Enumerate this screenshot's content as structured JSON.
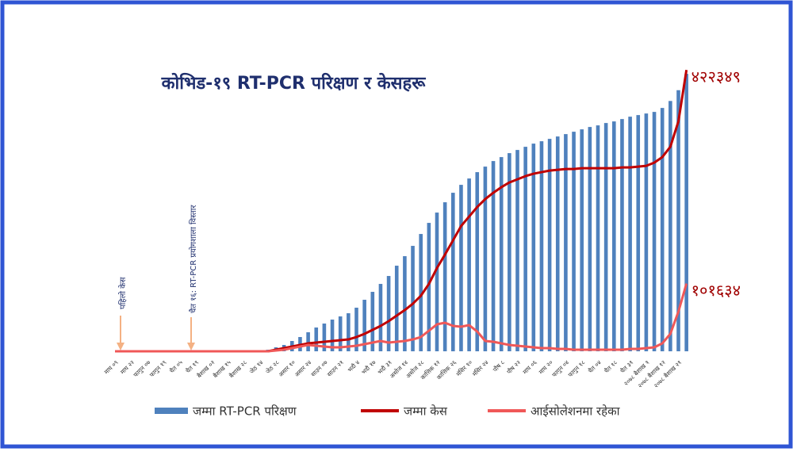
{
  "chart_data": {
    "type": "bar",
    "title": "कोभिड-१९ RT-PCR परिक्षण र केसहरू",
    "annotations": [
      "पहिलो केस",
      "चैत १६: RT-PCR प्रयोगशाला विस्तार"
    ],
    "categories": [
      "माघ ०९",
      null,
      "माघ २२",
      null,
      "फागुन ०७",
      null,
      "फागुन १९",
      null,
      "चैत ०५",
      null,
      "चैत १९",
      null,
      "बैशाख ०२",
      null,
      "बैशाख १५",
      null,
      "बैशाख २८",
      null,
      "जेठ १४",
      null,
      "जेठ २८",
      null,
      "असार १०",
      null,
      "असार २४",
      null,
      "साउन ०७",
      null,
      "साउन २१",
      null,
      "भदौ ४",
      null,
      "भदौ १७",
      null,
      "भदौ ३१",
      null,
      "असोज १४",
      null,
      "असोज २८",
      null,
      "कात्तिक १२",
      null,
      "कात्तिक २६",
      null,
      "मंसिर १०",
      null,
      "मंसिर २४",
      null,
      "पौष ८",
      null,
      "पौष २२",
      null,
      "माघ ०६",
      null,
      "माघ २०",
      null,
      "फागुन ०४",
      null,
      "फागुन १८",
      null,
      "चैत ०४",
      null,
      "चैत १८",
      null,
      "चैत ३१",
      null,
      "२०७८ बैशाख १",
      null,
      "२०७८ बैशाख १२",
      null,
      "२०७८ बैशाख २१",
      null
    ],
    "ylim": [
      0,
      425000
    ],
    "series": [
      {
        "name": "जम्मा RT-PCR परिक्षण",
        "type": "bar",
        "color": "#4f81bd",
        "values": [
          0,
          0,
          0,
          0,
          0,
          0,
          0,
          0,
          0,
          0,
          0,
          0,
          0,
          0,
          0,
          0,
          0,
          0,
          0,
          2380,
          5950,
          9520,
          15470,
          21420,
          28560,
          35700,
          41650,
          47600,
          52360,
          57120,
          65450,
          77350,
          89250,
          101150,
          113050,
          128520,
          142800,
          158270,
          176120,
          192780,
          208250,
          223720,
          238000,
          249900,
          259420,
          268940,
          277270,
          285600,
          291550,
          297500,
          302260,
          307020,
          311780,
          315350,
          318920,
          322490,
          326060,
          329630,
          333200,
          336770,
          339150,
          342720,
          345100,
          348670,
          352240,
          354620,
          357000,
          359380,
          365330,
          375800,
          392000,
          416500
        ]
      },
      {
        "name": "जम्मा केस",
        "type": "line",
        "color": "#c00000",
        "values": [
          0,
          0,
          0,
          0,
          0,
          0,
          0,
          0,
          0,
          0,
          0,
          0,
          0,
          0,
          0,
          0,
          0,
          0,
          0,
          0,
          2380,
          4760,
          7140,
          9520,
          11900,
          13090,
          14280,
          15470,
          16660,
          17850,
          21420,
          26180,
          32130,
          38080,
          45220,
          53550,
          61880,
          71400,
          83300,
          101150,
          124950,
          145180,
          166600,
          188020,
          202300,
          216580,
          228480,
          238000,
          246330,
          253470,
          258230,
          262990,
          266560,
          268940,
          271320,
          272510,
          273700,
          273700,
          274890,
          274890,
          274890,
          274890,
          274890,
          276080,
          276080,
          277270,
          278460,
          283220,
          291550,
          307020,
          345100,
          422349
        ],
        "value_labels": [
          null,
          null,
          null,
          null,
          null,
          null,
          null,
          null,
          null,
          null,
          null,
          null,
          null,
          null,
          null,
          null,
          null,
          null,
          null,
          null,
          null,
          null,
          null,
          null,
          null,
          null,
          null,
          null,
          null,
          null,
          null,
          null,
          null,
          null,
          null,
          null,
          null,
          null,
          null,
          null,
          null,
          null,
          null,
          null,
          null,
          null,
          null,
          null,
          null,
          null,
          null,
          null,
          null,
          null,
          null,
          null,
          null,
          null,
          null,
          null,
          null,
          null,
          null,
          null,
          null,
          null,
          null,
          null,
          null,
          null,
          null,
          "४२२३४९"
        ]
      },
      {
        "name": "आईसोलेशनमा रहेका",
        "type": "line",
        "color": "#f05858",
        "values": [
          0,
          0,
          0,
          0,
          0,
          0,
          0,
          0,
          0,
          0,
          0,
          0,
          0,
          0,
          0,
          0,
          0,
          0,
          0,
          0,
          1190,
          2380,
          4760,
          7140,
          9520,
          8330,
          7140,
          5950,
          5950,
          7140,
          8330,
          10710,
          13090,
          15470,
          13090,
          14280,
          15470,
          17850,
          21420,
          30940,
          40460,
          42840,
          38080,
          36890,
          39270,
          29750,
          15470,
          14280,
          11900,
          9520,
          8330,
          7140,
          5950,
          4760,
          4760,
          3570,
          3570,
          2380,
          2380,
          2380,
          2380,
          2380,
          2380,
          2380,
          3570,
          3570,
          4760,
          5950,
          11900,
          26180,
          59500,
          101634
        ],
        "value_labels": [
          null,
          null,
          null,
          null,
          null,
          null,
          null,
          null,
          null,
          null,
          null,
          null,
          null,
          null,
          null,
          null,
          null,
          null,
          null,
          null,
          null,
          null,
          null,
          null,
          null,
          null,
          null,
          null,
          null,
          null,
          null,
          null,
          null,
          null,
          null,
          null,
          null,
          null,
          null,
          null,
          null,
          null,
          null,
          null,
          null,
          null,
          null,
          null,
          null,
          null,
          null,
          null,
          null,
          null,
          null,
          null,
          null,
          null,
          null,
          null,
          null,
          null,
          null,
          null,
          null,
          null,
          null,
          null,
          null,
          null,
          null,
          "१०१६३४"
        ]
      }
    ]
  }
}
